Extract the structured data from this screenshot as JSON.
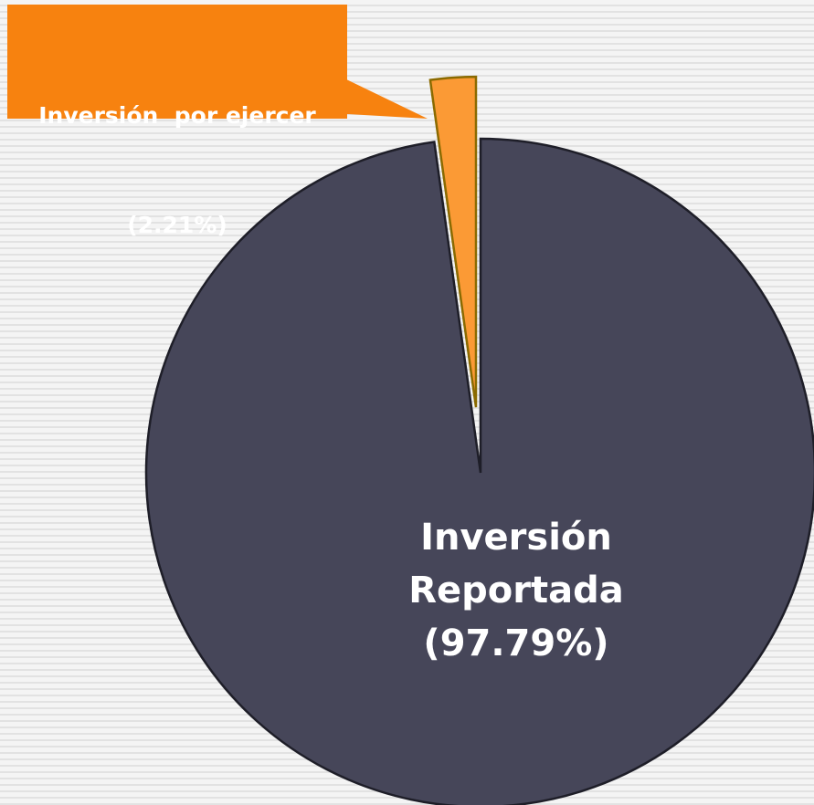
{
  "chart_data": {
    "type": "pie",
    "categories": [
      "Inversión Reportada",
      "Inversión  por ejercer"
    ],
    "values": [
      97.79,
      2.21
    ],
    "value_labels": [
      "(97.79%)",
      "(2.21%)"
    ],
    "colors": [
      "#464659",
      "#fb9a35"
    ]
  }
}
